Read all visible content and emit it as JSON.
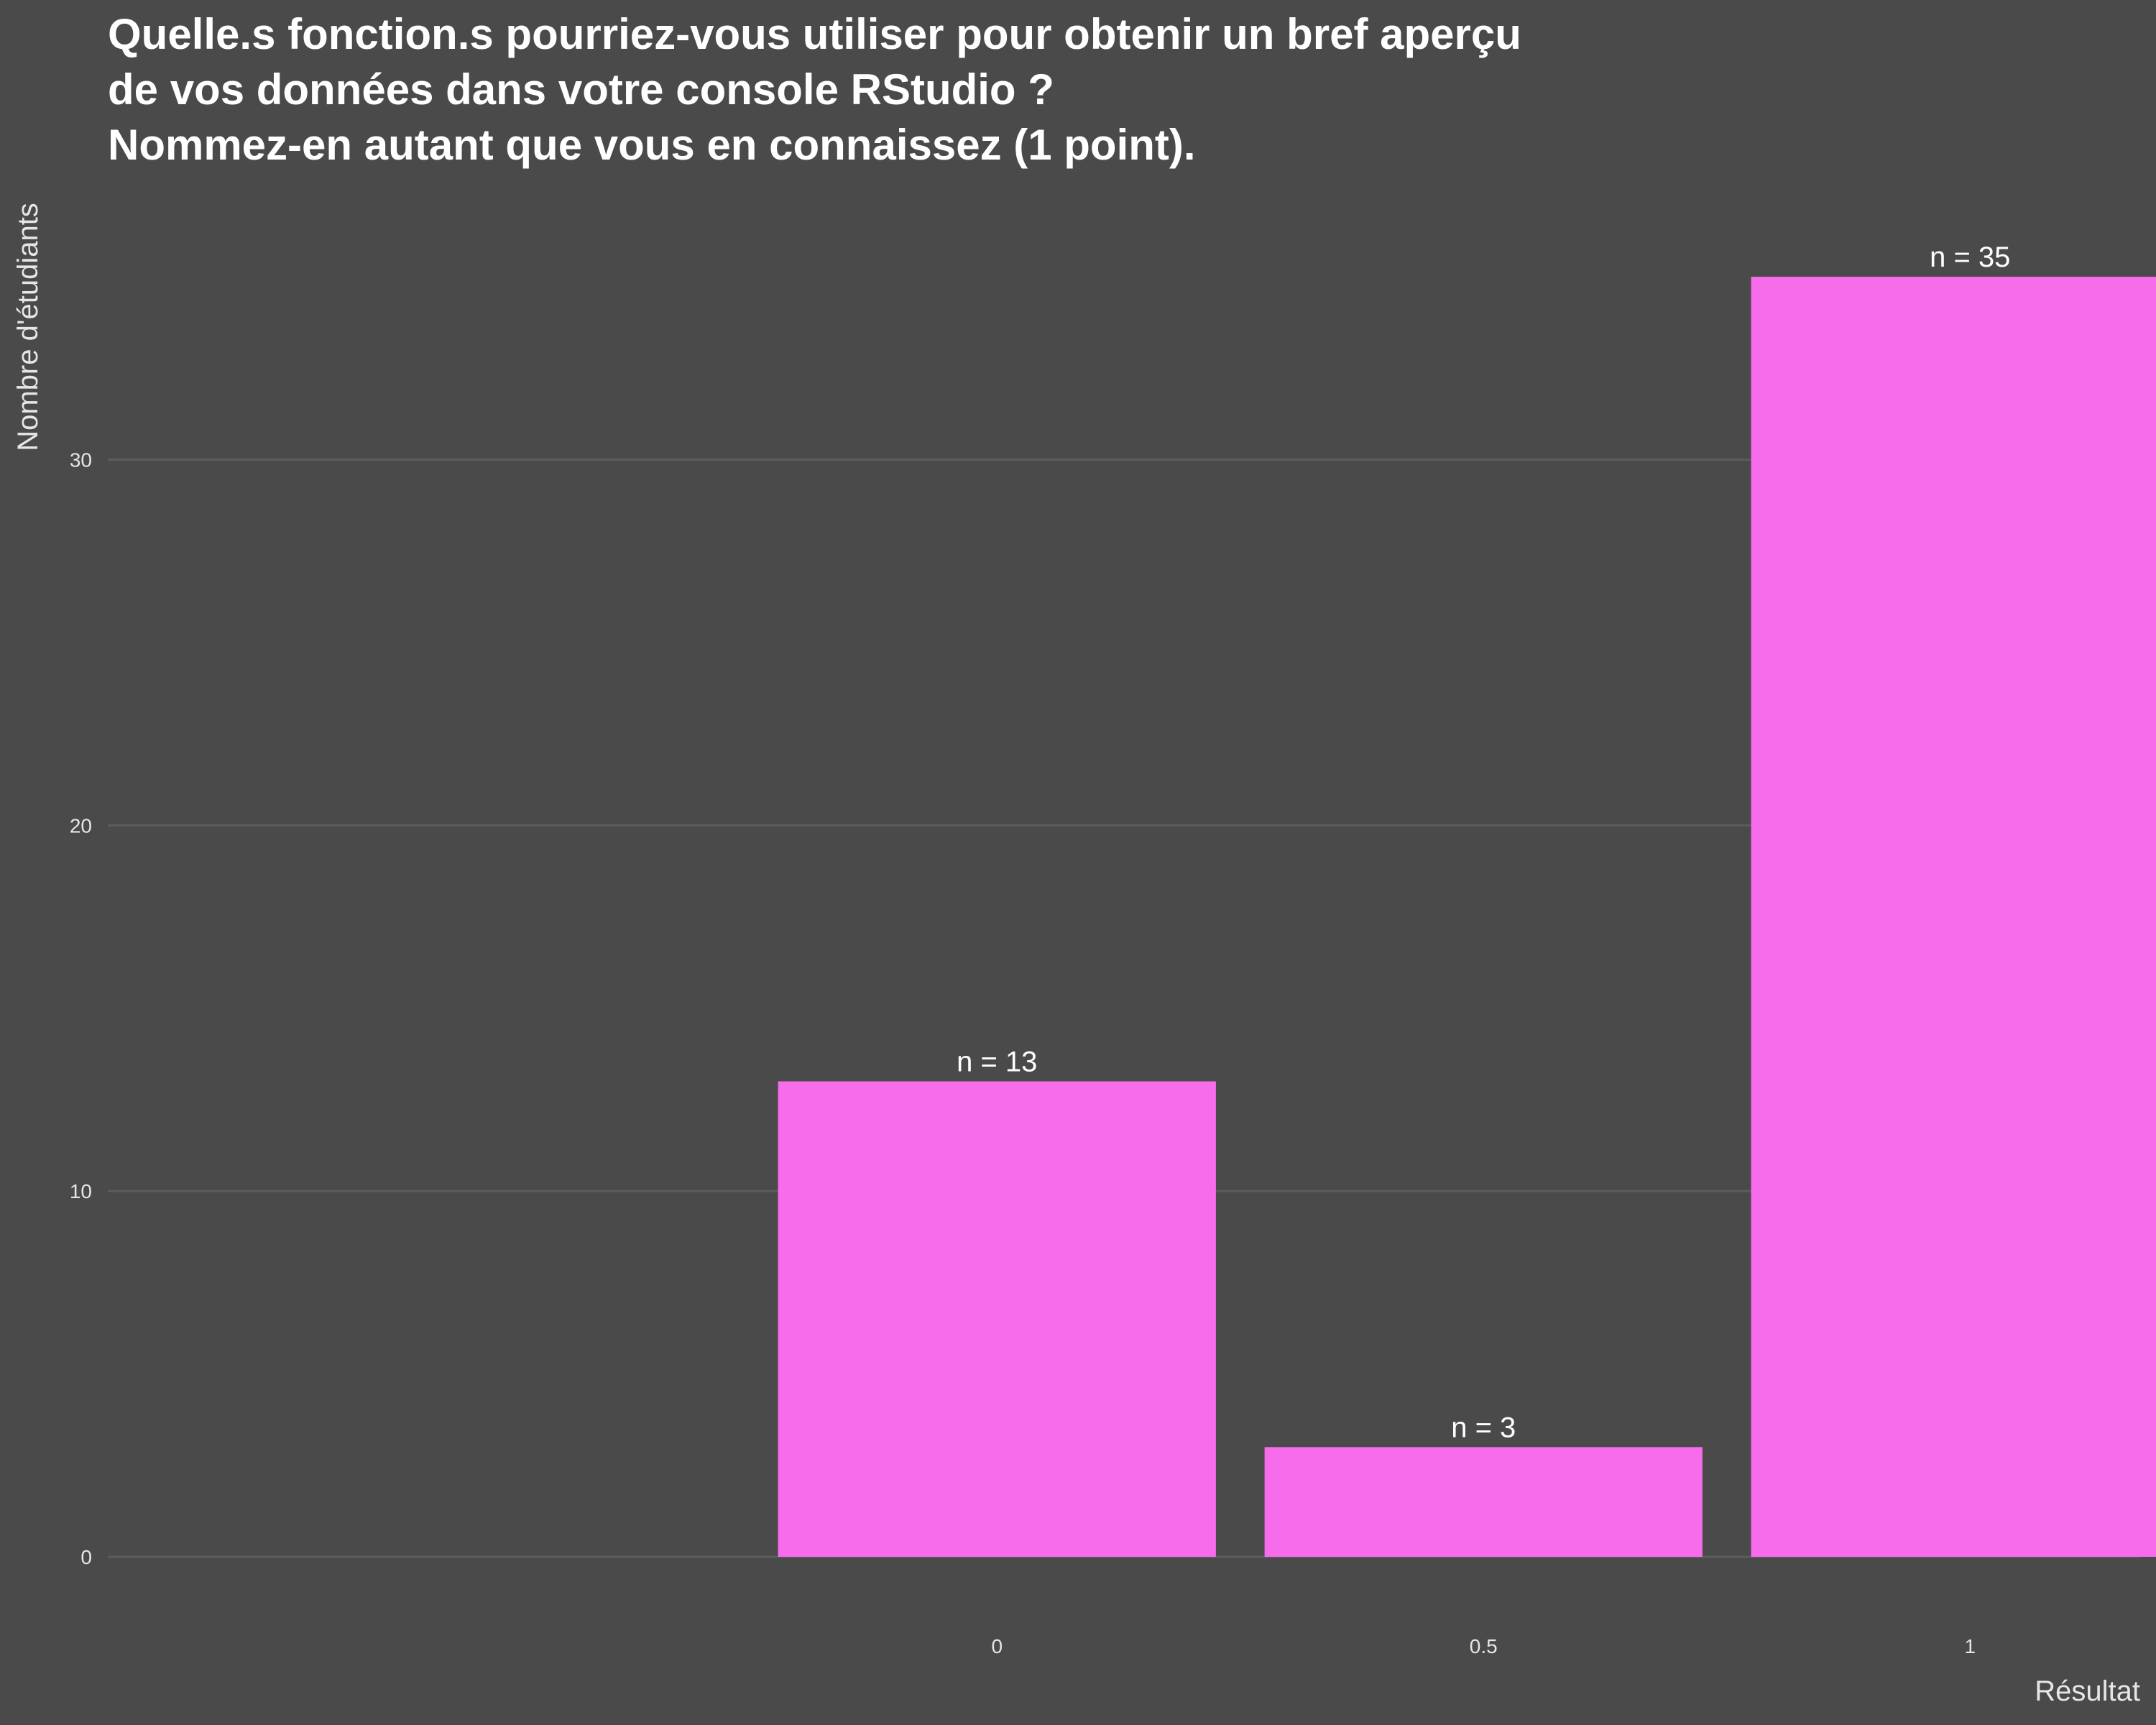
{
  "chart_data": {
    "type": "bar",
    "title_lines": [
      "Quelle.s fonction.s pourriez-vous utiliser pour obtenir un bref aperçu",
      "de vos données dans votre console RStudio ?",
      "Nommez-en autant que vous en connaissez (1 point)."
    ],
    "xlabel": "Résultat",
    "ylabel": "Nombre d'étudiants",
    "categories": [
      "0",
      "0.5",
      "1"
    ],
    "values": [
      13,
      3,
      35
    ],
    "data_labels": [
      "n = 13",
      "n = 3",
      "n = 35"
    ],
    "ylim": [
      0,
      36.75
    ],
    "yticks": [
      0,
      10,
      20,
      30
    ],
    "ytick_labels": [
      "0",
      "10",
      "20",
      "30"
    ],
    "grid": "horizontal",
    "bar_color": "#f76ceb",
    "background": "#4a4a4a"
  }
}
